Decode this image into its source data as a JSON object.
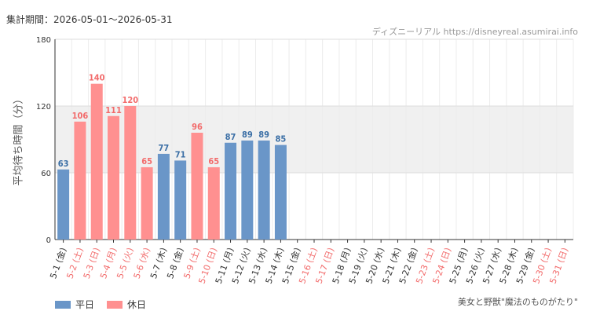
{
  "header": {
    "period": "集計期間：2026-05-01～2026-05-31",
    "credit": "ディズニーリアル https://disneyreal.asumirai.info"
  },
  "footer": {
    "attraction": "美女と野獣\"魔法のものがたり\""
  },
  "legend": {
    "weekday_label": "平日",
    "holiday_label": "休日"
  },
  "colors": {
    "weekday": "#6a96c8",
    "holiday": "#ff9090",
    "weekday_text": "#3a6ea5",
    "holiday_text": "#f26b6b",
    "band": "#f0f0f0"
  },
  "chart_data": {
    "type": "bar",
    "ylabel": "平均待ち時間（分）",
    "ylim": [
      0,
      180
    ],
    "yticks": [
      0,
      60,
      120,
      180
    ],
    "band": [
      60,
      120
    ],
    "categories": [
      "5-1 (金)",
      "5-2 (土)",
      "5-3 (日)",
      "5-4 (月)",
      "5-5 (火)",
      "5-6 (水)",
      "5-7 (木)",
      "5-8 (金)",
      "5-9 (土)",
      "5-10 (日)",
      "5-11 (月)",
      "5-12 (火)",
      "5-13 (水)",
      "5-14 (木)",
      "5-15 (金)",
      "5-16 (土)",
      "5-17 (日)",
      "5-18 (月)",
      "5-19 (火)",
      "5-20 (水)",
      "5-21 (木)",
      "5-22 (金)",
      "5-23 (土)",
      "5-24 (日)",
      "5-25 (月)",
      "5-26 (火)",
      "5-27 (水)",
      "5-28 (木)",
      "5-29 (金)",
      "5-30 (土)",
      "5-31 (日)"
    ],
    "day_type": [
      "weekday",
      "holiday",
      "holiday",
      "holiday",
      "holiday",
      "holiday",
      "weekday",
      "weekday",
      "holiday",
      "holiday",
      "weekday",
      "weekday",
      "weekday",
      "weekday",
      "weekday",
      "holiday",
      "holiday",
      "weekday",
      "weekday",
      "weekday",
      "weekday",
      "weekday",
      "holiday",
      "holiday",
      "weekday",
      "weekday",
      "weekday",
      "weekday",
      "weekday",
      "holiday",
      "holiday"
    ],
    "values": [
      63,
      106,
      140,
      111,
      120,
      65,
      77,
      71,
      96,
      65,
      87,
      89,
      89,
      85,
      null,
      null,
      null,
      null,
      null,
      null,
      null,
      null,
      null,
      null,
      null,
      null,
      null,
      null,
      null,
      null,
      null
    ]
  }
}
